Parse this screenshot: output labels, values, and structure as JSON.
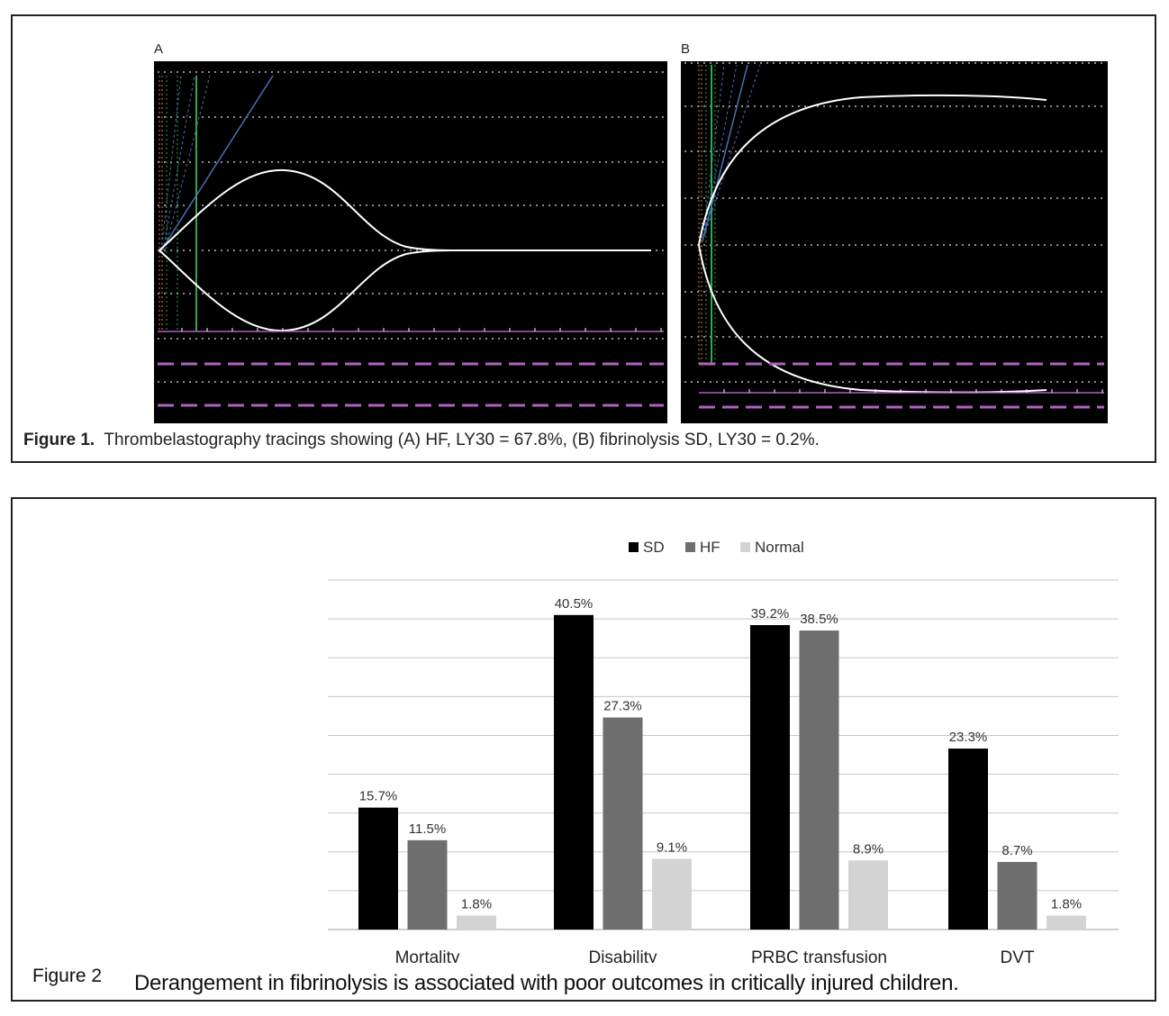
{
  "figure1": {
    "label_a": "A",
    "label_b": "B",
    "caption_prefix": "Figure 1.",
    "caption_text": "Thrombelastography tracings showing (A) HF, LY30 = 67.8%, (B) fibrinolysis SD, LY30 = 0.2%.",
    "colors": {
      "background": "#000000",
      "trace": "#ffffff",
      "guide_blue": "#4a6fb5",
      "guide_green": "#2fa84f",
      "guide_orange": "#d9823a",
      "baseline_purple": "#b060c0",
      "grid_dots": "#bbbbbb"
    }
  },
  "figure2": {
    "caption_head": "Figure 2",
    "caption_text": "Derangement in fibrinolysis is associated with poor outcomes in critically injured children."
  },
  "chart_data": {
    "type": "bar",
    "categories": [
      "Mortality",
      "Disability",
      "PRBC transfusion",
      "DVT"
    ],
    "series": [
      {
        "name": "SD",
        "color": "#000000",
        "values": [
          15.7,
          40.5,
          39.2,
          23.3
        ],
        "labels": [
          "15.7%",
          "40.5%",
          "39.2%",
          "23.3%"
        ]
      },
      {
        "name": "HF",
        "color": "#6e6e6e",
        "values": [
          11.5,
          27.3,
          38.5,
          8.7
        ],
        "labels": [
          "11.5%",
          "27.3%",
          "38.5%",
          "8.7%"
        ]
      },
      {
        "name": "Normal",
        "color": "#d3d3d3",
        "values": [
          1.8,
          9.1,
          8.9,
          1.8
        ],
        "labels": [
          "1.8%",
          "9.1%",
          "8.9%",
          "1.8%"
        ]
      }
    ],
    "ylim": [
      0,
      45
    ],
    "grid": true,
    "legend": "top-center"
  }
}
